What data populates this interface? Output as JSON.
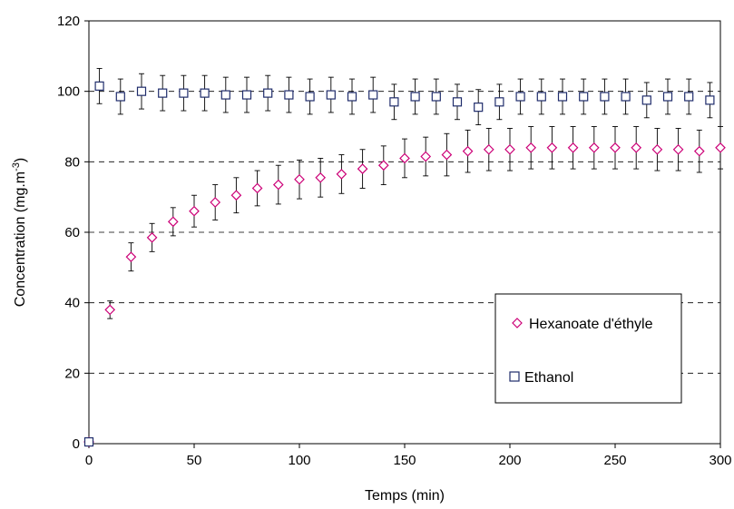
{
  "chart_data": {
    "type": "scatter",
    "title": "",
    "xlabel": "Temps (min)",
    "ylabel_main": "Concentration (mg.m",
    "ylabel_sup": "-3",
    "ylabel_close": ")",
    "xlim": [
      0,
      300
    ],
    "ylim": [
      0,
      120
    ],
    "xticks": [
      0,
      50,
      100,
      150,
      200,
      250,
      300
    ],
    "yticks": [
      0,
      20,
      40,
      60,
      80,
      100,
      120
    ],
    "grid": "horizontal-dashed",
    "legend_position": "right-center",
    "series": [
      {
        "name": "Hexanoate d'éthyle",
        "marker": "diamond",
        "color": "#cc0077",
        "x": [
          0,
          10,
          20,
          30,
          40,
          50,
          60,
          70,
          80,
          90,
          100,
          110,
          120,
          130,
          140,
          150,
          160,
          170,
          180,
          190,
          200,
          210,
          220,
          230,
          240,
          250,
          260,
          270,
          280,
          290,
          300
        ],
        "y": [
          0.5,
          38,
          53,
          58.5,
          63,
          66,
          68.5,
          70.5,
          72.5,
          73.5,
          75,
          75.5,
          76.5,
          78,
          79,
          81,
          81.5,
          82,
          83,
          83.5,
          83.5,
          84,
          84,
          84,
          84,
          84,
          84,
          83.5,
          83.5,
          83,
          84
        ],
        "err": [
          0,
          2.5,
          4,
          4,
          4,
          4.5,
          5,
          5,
          5,
          5.5,
          5.5,
          5.5,
          5.5,
          5.5,
          5.5,
          5.5,
          5.5,
          6,
          6,
          6,
          6,
          6,
          6,
          6,
          6,
          6,
          6,
          6,
          6,
          6,
          6
        ]
      },
      {
        "name": "Ethanol",
        "marker": "square",
        "color": "#1f2c6b",
        "x": [
          0,
          5,
          15,
          25,
          35,
          45,
          55,
          65,
          75,
          85,
          95,
          105,
          115,
          125,
          135,
          145,
          155,
          165,
          175,
          185,
          195,
          205,
          215,
          225,
          235,
          245,
          255,
          265,
          275,
          285,
          295
        ],
        "y": [
          0.5,
          101.5,
          98.5,
          100,
          99.5,
          99.5,
          99.5,
          99,
          99,
          99.5,
          99,
          98.5,
          99,
          98.5,
          99,
          97,
          98.5,
          98.5,
          97,
          95.5,
          97,
          98.5,
          98.5,
          98.5,
          98.5,
          98.5,
          98.5,
          97.5,
          98.5,
          98.5,
          97.5
        ],
        "err": [
          0,
          5,
          5,
          5,
          5,
          5,
          5,
          5,
          5,
          5,
          5,
          5,
          5,
          5,
          5,
          5,
          5,
          5,
          5,
          5,
          5,
          5,
          5,
          5,
          5,
          5,
          5,
          5,
          5,
          5,
          5
        ]
      }
    ]
  }
}
